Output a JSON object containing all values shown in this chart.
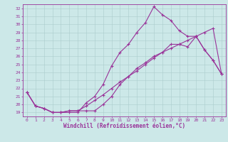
{
  "xlabel": "Windchill (Refroidissement éolien,°C)",
  "bg_color": "#cce8e8",
  "line_color": "#993399",
  "grid_color": "#aacccc",
  "xlim": [
    -0.5,
    23.5
  ],
  "ylim": [
    18.5,
    32.5
  ],
  "xticks": [
    0,
    1,
    2,
    3,
    4,
    5,
    6,
    7,
    8,
    9,
    10,
    11,
    12,
    13,
    14,
    15,
    16,
    17,
    18,
    19,
    20,
    21,
    22,
    23
  ],
  "yticks": [
    19,
    20,
    21,
    22,
    23,
    24,
    25,
    26,
    27,
    28,
    29,
    30,
    31,
    32
  ],
  "line1_x": [
    0,
    1,
    2,
    3,
    4,
    5,
    6,
    7,
    8,
    9,
    10,
    11,
    12,
    13,
    14,
    15,
    16,
    17,
    18,
    19,
    20,
    21,
    22,
    23
  ],
  "line1_y": [
    21.5,
    19.8,
    19.5,
    19.0,
    19.0,
    19.2,
    19.2,
    19.2,
    19.2,
    20.0,
    21.0,
    22.5,
    23.5,
    24.5,
    25.2,
    26.0,
    26.5,
    27.5,
    27.5,
    27.2,
    28.5,
    26.8,
    25.5,
    23.8
  ],
  "line2_x": [
    0,
    1,
    2,
    3,
    4,
    5,
    6,
    7,
    8,
    9,
    10,
    11,
    12,
    13,
    14,
    15,
    16,
    17,
    18,
    19,
    20,
    21,
    22,
    23
  ],
  "line2_y": [
    21.5,
    19.8,
    19.5,
    19.0,
    19.0,
    19.0,
    19.0,
    20.2,
    21.0,
    22.5,
    24.8,
    26.5,
    27.5,
    29.0,
    30.2,
    32.2,
    31.2,
    30.5,
    29.2,
    28.5,
    28.5,
    26.8,
    25.5,
    23.8
  ],
  "line3_x": [
    0,
    1,
    2,
    3,
    4,
    5,
    6,
    7,
    8,
    9,
    10,
    11,
    12,
    13,
    14,
    15,
    16,
    17,
    18,
    19,
    20,
    21,
    22,
    23
  ],
  "line3_y": [
    21.5,
    19.8,
    19.5,
    19.0,
    19.0,
    19.2,
    19.2,
    19.8,
    20.5,
    21.2,
    22.0,
    22.8,
    23.5,
    24.2,
    25.0,
    25.8,
    26.5,
    27.0,
    27.5,
    28.0,
    28.5,
    29.0,
    29.5,
    23.8
  ],
  "tick_fontsize": 4.5,
  "xlabel_fontsize": 5.5,
  "tick_color": "#993399",
  "spine_color": "#993399"
}
